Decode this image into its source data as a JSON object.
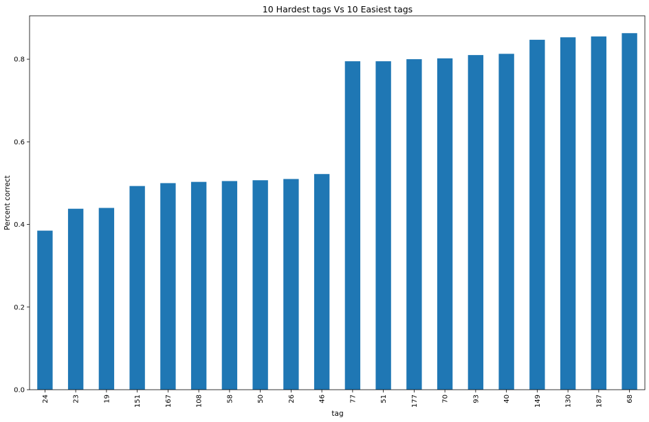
{
  "chart_data": {
    "type": "bar",
    "title": "10 Hardest tags Vs 10 Easiest tags",
    "xlabel": "tag",
    "ylabel": "Percent correct",
    "categories": [
      "24",
      "23",
      "19",
      "151",
      "167",
      "108",
      "58",
      "50",
      "26",
      "46",
      "77",
      "51",
      "177",
      "70",
      "93",
      "40",
      "149",
      "130",
      "187",
      "68"
    ],
    "values": [
      0.385,
      0.438,
      0.44,
      0.493,
      0.5,
      0.503,
      0.505,
      0.507,
      0.51,
      0.522,
      0.795,
      0.795,
      0.8,
      0.802,
      0.81,
      0.813,
      0.847,
      0.853,
      0.855,
      0.863
    ],
    "ylim": [
      0,
      0.905
    ],
    "yticks": [
      0.0,
      0.2,
      0.4,
      0.6,
      0.8
    ],
    "ytick_labels": [
      "0.0",
      "0.2",
      "0.4",
      "0.6",
      "0.8"
    ],
    "bar_color": "#1f77b4",
    "grid": false,
    "legend": "none"
  }
}
